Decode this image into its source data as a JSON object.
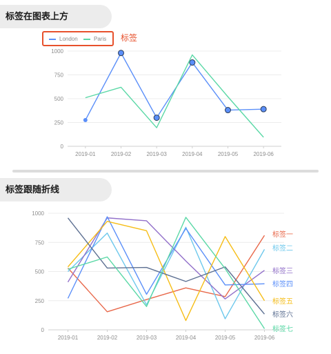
{
  "sections": [
    {
      "title": "标签在图表上方"
    },
    {
      "title": "标签跟随折线"
    }
  ],
  "chart_data": [
    {
      "type": "line",
      "title": "",
      "categories": [
        "2019-01",
        "2019-02",
        "2019-03",
        "2019-04",
        "2019-05",
        "2019-06"
      ],
      "ylim": [
        0,
        1000
      ],
      "yticks": [
        0,
        250,
        500,
        750,
        1000
      ],
      "grid": true,
      "legend_placement": "top-left",
      "legend_annotation": "标签",
      "series": [
        {
          "name": "London",
          "color": "#5b8ff9",
          "values": [
            275,
            980,
            300,
            880,
            380,
            390
          ],
          "markers": true
        },
        {
          "name": "Paris",
          "color": "#5ad8a6",
          "values": [
            510,
            620,
            195,
            960,
            520,
            95
          ],
          "markers": false
        }
      ]
    },
    {
      "type": "line",
      "title": "",
      "categories": [
        "2019-01",
        "2019-02",
        "2019-03",
        "2019-04",
        "2019-05",
        "2019-06"
      ],
      "ylim": [
        0,
        1000
      ],
      "yticks": [
        0,
        250,
        500,
        750,
        1000
      ],
      "grid": true,
      "legend_placement": "end-of-line",
      "series": [
        {
          "name": "标签一",
          "color": "#e8684a",
          "values": [
            530,
            155,
            260,
            360,
            285,
            810
          ]
        },
        {
          "name": "标签二",
          "color": "#6dc8ec",
          "values": [
            500,
            830,
            215,
            880,
            95,
            690
          ]
        },
        {
          "name": "标签三",
          "color": "#9270ca",
          "values": [
            410,
            960,
            935,
            590,
            265,
            510
          ]
        },
        {
          "name": "标签四",
          "color": "#5b8ff9",
          "values": [
            270,
            970,
            305,
            870,
            385,
            395
          ]
        },
        {
          "name": "标签五",
          "color": "#f6bd16",
          "values": [
            540,
            930,
            850,
            80,
            800,
            250
          ]
        },
        {
          "name": "标签六",
          "color": "#5d7092",
          "values": [
            960,
            530,
            535,
            415,
            540,
            135
          ]
        },
        {
          "name": "标签七",
          "color": "#5ad8a6",
          "values": [
            520,
            625,
            200,
            965,
            525,
            10
          ]
        }
      ]
    }
  ]
}
